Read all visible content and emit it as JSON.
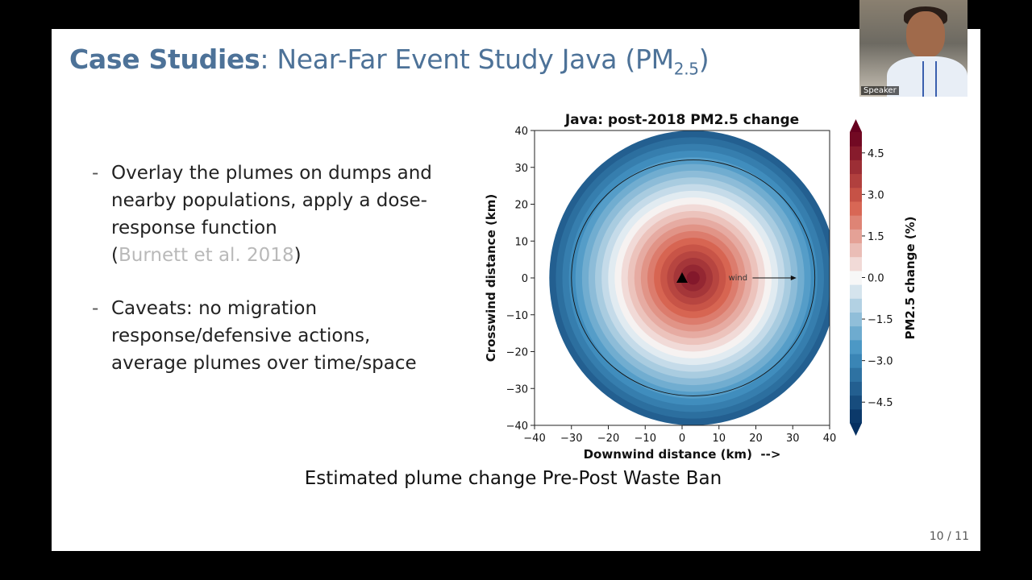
{
  "slide": {
    "title_bold": "Case Studies",
    "title_rest": ": Near-Far Event Study Java (PM",
    "title_sub": "2.5",
    "title_close": ")",
    "bullets": [
      {
        "dash": "-",
        "text": "Overlay the plumes on dumps and nearby populations, apply a dose-response function",
        "cite_open": "(",
        "cite": "Burnett et al. 2018",
        "cite_close": ")"
      },
      {
        "dash": "-",
        "text": "Caveats: no migration response/defensive actions, average plumes over time/space"
      }
    ],
    "caption": "Estimated plume change Pre-Post Waste Ban",
    "page_number": "10 / 11"
  },
  "webcam": {
    "label": "Speaker"
  },
  "chart_data": {
    "type": "heatmap",
    "title": "Java: post-2018 PM2.5 change",
    "xlabel": "Downwind distance (km)  -->",
    "ylabel": "Crosswind distance (km)",
    "xlim": [
      -40,
      40
    ],
    "ylim": [
      -40,
      40
    ],
    "xticks": [
      -40,
      -30,
      -20,
      -10,
      0,
      10,
      20,
      30,
      40
    ],
    "yticks": [
      -40,
      -30,
      -20,
      -10,
      0,
      10,
      20,
      30,
      40
    ],
    "colorbar": {
      "label": "PM2.5 change (%)",
      "min": -5.25,
      "max": 5.25,
      "ticks": [
        4.5,
        3.0,
        1.5,
        0.0,
        -1.5,
        -3.0,
        -4.5
      ],
      "tick_labels": [
        "4.5",
        "3.0",
        "1.5",
        "0.0",
        "−1.5",
        "−3.0",
        "−4.5"
      ]
    },
    "peak_value": 5.0,
    "source_point": [
      0,
      0
    ],
    "plume_center": [
      3,
      0
    ],
    "plume_radius_x": 39,
    "plume_radius_y": 40,
    "zero_contour_radius_x": 33,
    "zero_contour_radius_y": 32,
    "wind_label": "wind",
    "wind_arrow": {
      "from": [
        13,
        0
      ],
      "to": [
        31,
        0
      ]
    },
    "colors": {
      "positive_max": "#67001f",
      "positive_mid": "#d6604d",
      "neutral": "#f7f7f7",
      "negative_mid": "#4393c3",
      "negative_max": "#053061"
    }
  }
}
